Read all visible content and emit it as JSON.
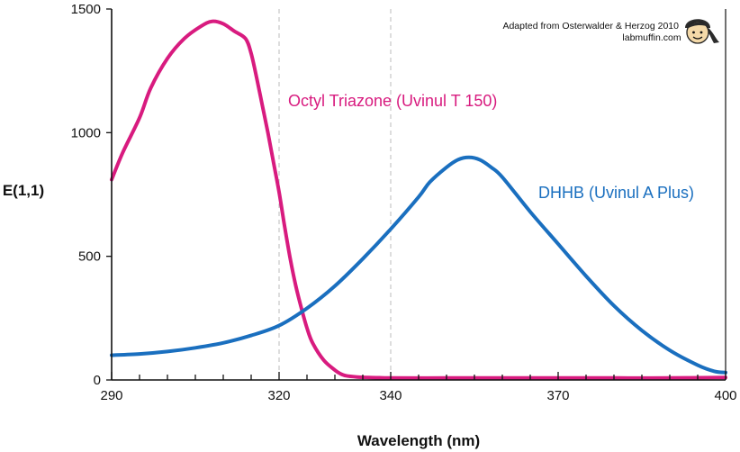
{
  "chart_data": {
    "type": "line",
    "title": "",
    "xlabel": "Wavelength (nm)",
    "ylabel": "E(1,1)",
    "xlim": [
      290,
      400
    ],
    "ylim": [
      0,
      1500
    ],
    "x_ticks": [
      290,
      320,
      340,
      370,
      400
    ],
    "y_ticks": [
      0,
      500,
      1000,
      1500
    ],
    "reference_lines_x": [
      320,
      340
    ],
    "grid": false,
    "legend": "none",
    "series": [
      {
        "name": "Octyl Triazone (Uvinul T 150)",
        "color": "#d81b7f",
        "x": [
          290,
          292,
          295,
          297,
          300,
          303,
          306,
          308,
          310,
          312,
          314,
          315,
          316,
          317,
          318,
          319,
          320,
          321,
          322,
          323,
          324,
          325,
          326,
          328,
          330,
          331,
          332,
          334,
          336,
          338,
          340,
          350,
          360,
          370,
          380,
          390,
          400
        ],
        "y": [
          810,
          920,
          1060,
          1180,
          1300,
          1380,
          1430,
          1450,
          1440,
          1410,
          1380,
          1320,
          1220,
          1110,
          1000,
          880,
          760,
          620,
          490,
          380,
          290,
          210,
          150,
          80,
          40,
          25,
          17,
          12,
          10,
          9,
          8,
          8,
          8,
          8,
          8,
          8,
          10
        ]
      },
      {
        "name": "DHHB (Uvinul A Plus)",
        "color": "#1a6fbf",
        "x": [
          290,
          295,
          300,
          305,
          310,
          315,
          320,
          325,
          330,
          335,
          340,
          345,
          347,
          350,
          352,
          354,
          356,
          358,
          360,
          365,
          370,
          375,
          380,
          385,
          390,
          395,
          398,
          400
        ],
        "y": [
          100,
          105,
          115,
          130,
          150,
          180,
          220,
          290,
          380,
          490,
          610,
          740,
          800,
          860,
          890,
          900,
          890,
          860,
          820,
          680,
          550,
          420,
          300,
          200,
          120,
          60,
          35,
          30
        ]
      }
    ]
  },
  "annotations": {
    "credit_line1": "Adapted from Osterwalder & Herzog 2010",
    "credit_line2": "labmuffin.com",
    "mascot_icon": "labmuffin-face-icon"
  }
}
